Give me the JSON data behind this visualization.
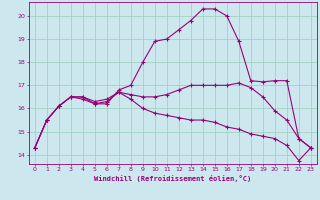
{
  "xlabel": "Windchill (Refroidissement éolien,°C)",
  "bg_color": "#cce8ee",
  "line_color": "#990077",
  "grid_color": "#99ccbb",
  "xlim": [
    -0.5,
    23.5
  ],
  "ylim": [
    13.6,
    20.6
  ],
  "yticks": [
    14,
    15,
    16,
    17,
    18,
    19,
    20
  ],
  "xticks": [
    0,
    1,
    2,
    3,
    4,
    5,
    6,
    7,
    8,
    9,
    10,
    11,
    12,
    13,
    14,
    15,
    16,
    17,
    18,
    19,
    20,
    21,
    22,
    23
  ],
  "line1_x": [
    0,
    1,
    2,
    3,
    4,
    5,
    6,
    7,
    8,
    9,
    10,
    11,
    12,
    13,
    14,
    15,
    16,
    17,
    18,
    19,
    20,
    21,
    22,
    23
  ],
  "line1_y": [
    14.3,
    15.5,
    16.1,
    16.5,
    16.5,
    16.3,
    16.4,
    16.7,
    16.6,
    16.5,
    16.5,
    16.6,
    16.8,
    17.0,
    17.0,
    17.0,
    17.0,
    17.1,
    16.9,
    16.5,
    15.9,
    15.5,
    14.7,
    14.3
  ],
  "line2_x": [
    0,
    1,
    2,
    3,
    4,
    5,
    6,
    7,
    8,
    9,
    10,
    11,
    12,
    13,
    14,
    15,
    16,
    17,
    18,
    19,
    20,
    21,
    22,
    23
  ],
  "line2_y": [
    14.3,
    15.5,
    16.1,
    16.5,
    16.5,
    16.2,
    16.2,
    16.8,
    17.0,
    18.0,
    18.9,
    19.0,
    19.4,
    19.8,
    20.3,
    20.3,
    20.0,
    18.9,
    17.2,
    17.15,
    17.2,
    17.2,
    14.7,
    14.3
  ],
  "line3_x": [
    0,
    1,
    2,
    3,
    4,
    5,
    6,
    7,
    8,
    9,
    10,
    11,
    12,
    13,
    14,
    15,
    16,
    17,
    18,
    19,
    20,
    21,
    22,
    23
  ],
  "line3_y": [
    14.3,
    15.5,
    16.1,
    16.5,
    16.4,
    16.2,
    16.3,
    16.7,
    16.4,
    16.0,
    15.8,
    15.7,
    15.6,
    15.5,
    15.5,
    15.4,
    15.2,
    15.1,
    14.9,
    14.8,
    14.7,
    14.4,
    13.75,
    14.3
  ]
}
